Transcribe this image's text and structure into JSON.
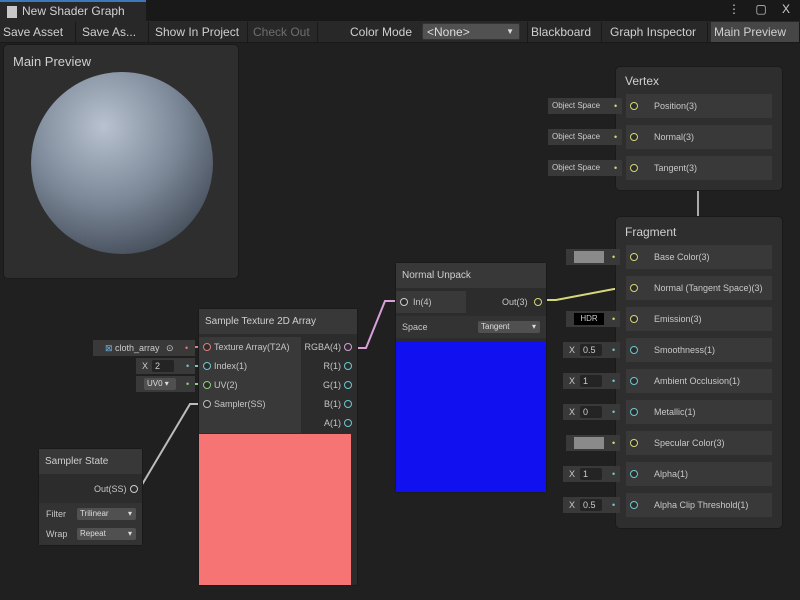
{
  "window": {
    "tab_title": "New Shader Graph",
    "controls": "⋮ ▢ X"
  },
  "toolbar": {
    "save_asset": "Save Asset",
    "save_as": "Save As...",
    "show_in_project": "Show In Project",
    "check_out": "Check Out",
    "color_mode_label": "Color Mode",
    "color_mode_value": "<None>",
    "blackboard": "Blackboard",
    "graph_inspector": "Graph Inspector",
    "main_preview": "Main Preview"
  },
  "main_preview": {
    "title": "Main Preview"
  },
  "vertex": {
    "title": "Vertex",
    "slots": [
      {
        "label": "Position(3)",
        "input": "Object Space"
      },
      {
        "label": "Normal(3)",
        "input": "Object Space"
      },
      {
        "label": "Tangent(3)",
        "input": "Object Space"
      }
    ]
  },
  "fragment": {
    "title": "Fragment",
    "slots": [
      {
        "label": "Base Color(3)",
        "input": "",
        "kind": "color"
      },
      {
        "label": "Normal (Tangent Space)(3)",
        "input": "",
        "kind": "connected"
      },
      {
        "label": "Emission(3)",
        "input": "HDR",
        "kind": "hdr"
      },
      {
        "label": "Smoothness(1)",
        "input": "0.5",
        "kind": "x"
      },
      {
        "label": "Ambient Occlusion(1)",
        "input": "1",
        "kind": "x"
      },
      {
        "label": "Metallic(1)",
        "input": "0",
        "kind": "x"
      },
      {
        "label": "Specular Color(3)",
        "input": "",
        "kind": "color"
      },
      {
        "label": "Alpha(1)",
        "input": "1",
        "kind": "x"
      },
      {
        "label": "Alpha Clip Threshold(1)",
        "input": "0.5",
        "kind": "x"
      }
    ]
  },
  "normal_unpack": {
    "title": "Normal Unpack",
    "in": "In(4)",
    "out": "Out(3)",
    "space_label": "Space",
    "space_value": "Tangent",
    "preview_color": "#1010f0"
  },
  "sample_texture": {
    "title": "Sample Texture 2D Array",
    "inputs": [
      "Texture Array(T2A)",
      "Index(1)",
      "UV(2)",
      "Sampler(SS)"
    ],
    "outputs": [
      "RGBA(4)",
      "R(1)",
      "G(1)",
      "B(1)",
      "A(1)"
    ],
    "texture_value": "cloth_array",
    "index_value": "2",
    "uv_value": "UV0",
    "preview_color": "#f77474"
  },
  "sampler_state": {
    "title": "Sampler State",
    "out": "Out(SS)",
    "filter_label": "Filter",
    "filter_value": "Trilinear",
    "wrap_label": "Wrap",
    "wrap_value": "Repeat"
  },
  "x_label": "X"
}
